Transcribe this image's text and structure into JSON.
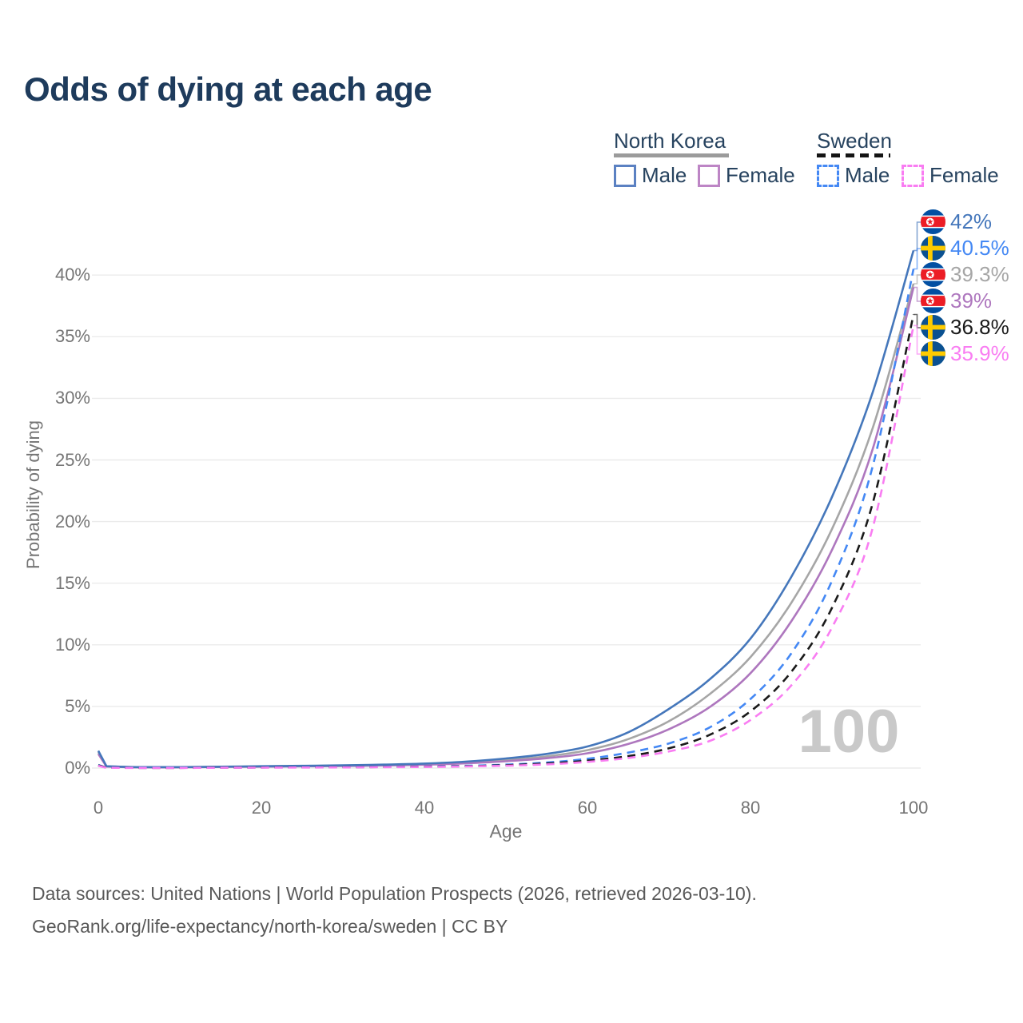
{
  "title": "Odds of dying at each age",
  "watermark": "100",
  "legend": {
    "groups": [
      {
        "name": "North Korea",
        "style": "solid",
        "key_color": "#9b9b9b",
        "items": [
          {
            "label": "Male",
            "color": "#5b81c2"
          },
          {
            "label": "Female",
            "color": "#bd85c5"
          }
        ]
      },
      {
        "name": "Sweden",
        "style": "dashed",
        "key_color": "#141414",
        "items": [
          {
            "label": "Male",
            "color": "#4488f4"
          },
          {
            "label": "Female",
            "color": "#f97df2"
          }
        ]
      }
    ]
  },
  "footer": {
    "line1": "Data sources: United Nations | World Population Prospects (2026, retrieved 2026-03-10).",
    "line2": "GeoRank.org/life-expectancy/north-korea/sweden | CC BY"
  },
  "colors": {
    "title": "#1e3b5c",
    "legend_text": "#27435f",
    "axis_text": "#757575",
    "grid": "#ebebeb",
    "watermark": "#c9c9c9",
    "footer": "#595959"
  },
  "chart_data": {
    "type": "line",
    "title": "Odds of dying at each age",
    "xlabel": "Age",
    "ylabel": "Probability of dying",
    "xlim": [
      0,
      100
    ],
    "ylim": [
      0,
      44
    ],
    "grid": "horizontal",
    "x_ticks": [
      0,
      20,
      40,
      60,
      80,
      100
    ],
    "y_ticks": [
      0,
      5,
      10,
      15,
      20,
      25,
      30,
      35,
      40
    ],
    "y_tick_labels": [
      "0%",
      "5%",
      "10%",
      "15%",
      "20%",
      "25%",
      "30%",
      "35%",
      "40%"
    ],
    "x": [
      0,
      1,
      5,
      10,
      15,
      20,
      25,
      30,
      35,
      40,
      45,
      50,
      55,
      60,
      65,
      70,
      75,
      80,
      85,
      90,
      95,
      100
    ],
    "series": [
      {
        "name": "North Korea (both sexes)",
        "country": "north-korea",
        "style": "solid",
        "color": "#a6a6a6",
        "values": [
          1.3,
          0.13,
          0.07,
          0.07,
          0.1,
          0.13,
          0.16,
          0.19,
          0.24,
          0.31,
          0.44,
          0.65,
          0.95,
          1.45,
          2.35,
          3.8,
          6.0,
          9.0,
          13.4,
          19.4,
          27.6,
          39.3
        ]
      },
      {
        "name": "North Korea Female",
        "country": "north-korea",
        "style": "solid",
        "color": "#ae77be",
        "values": [
          1.15,
          0.12,
          0.06,
          0.06,
          0.09,
          0.11,
          0.14,
          0.17,
          0.21,
          0.27,
          0.38,
          0.55,
          0.8,
          1.2,
          1.95,
          3.15,
          4.95,
          7.7,
          11.9,
          17.7,
          25.9,
          39.0
        ]
      },
      {
        "name": "North Korea Male",
        "country": "north-korea",
        "style": "solid",
        "color": "#4577bb",
        "values": [
          1.4,
          0.15,
          0.08,
          0.08,
          0.11,
          0.15,
          0.18,
          0.22,
          0.28,
          0.36,
          0.52,
          0.78,
          1.15,
          1.75,
          2.9,
          4.8,
          7.2,
          10.5,
          15.5,
          22.0,
          30.5,
          42.0
        ]
      },
      {
        "name": "Sweden Male",
        "country": "sweden",
        "style": "dashed",
        "color": "#4488f4",
        "values": [
          0.25,
          0.03,
          0.02,
          0.02,
          0.04,
          0.06,
          0.07,
          0.08,
          0.1,
          0.13,
          0.18,
          0.28,
          0.45,
          0.75,
          1.25,
          2.0,
          3.3,
          5.6,
          9.3,
          15.2,
          24.5,
          40.5
        ]
      },
      {
        "name": "Sweden (both sexes)",
        "country": "sweden",
        "style": "dashed",
        "color": "#1a1a1a",
        "values": [
          0.22,
          0.025,
          0.015,
          0.015,
          0.03,
          0.045,
          0.055,
          0.065,
          0.085,
          0.11,
          0.15,
          0.23,
          0.37,
          0.6,
          0.97,
          1.6,
          2.7,
          4.6,
          7.8,
          13.0,
          21.5,
          36.8
        ]
      },
      {
        "name": "Sweden Female",
        "country": "sweden",
        "style": "dashed",
        "color": "#f97df2",
        "values": [
          0.18,
          0.02,
          0.012,
          0.012,
          0.025,
          0.035,
          0.045,
          0.055,
          0.07,
          0.09,
          0.13,
          0.19,
          0.3,
          0.5,
          0.82,
          1.35,
          2.2,
          3.9,
          6.7,
          11.4,
          19.5,
          35.9
        ]
      }
    ],
    "end_labels": [
      {
        "text": "42%",
        "value": 42.0,
        "flag": "north-korea",
        "color": "#4577bb",
        "series": "North Korea Male"
      },
      {
        "text": "40.5%",
        "value": 40.5,
        "flag": "sweden",
        "color": "#4488f4",
        "series": "Sweden Male"
      },
      {
        "text": "39.3%",
        "value": 39.3,
        "flag": "north-korea",
        "color": "#a6a6a6",
        "series": "North Korea (both sexes)"
      },
      {
        "text": "39%",
        "value": 39.0,
        "flag": "north-korea",
        "color": "#ae77be",
        "series": "North Korea Female"
      },
      {
        "text": "36.8%",
        "value": 36.8,
        "flag": "sweden",
        "color": "#1a1a1a",
        "series": "Sweden (both sexes)"
      },
      {
        "text": "35.9%",
        "value": 35.9,
        "flag": "sweden",
        "color": "#f97df2",
        "series": "Sweden Female"
      }
    ]
  }
}
